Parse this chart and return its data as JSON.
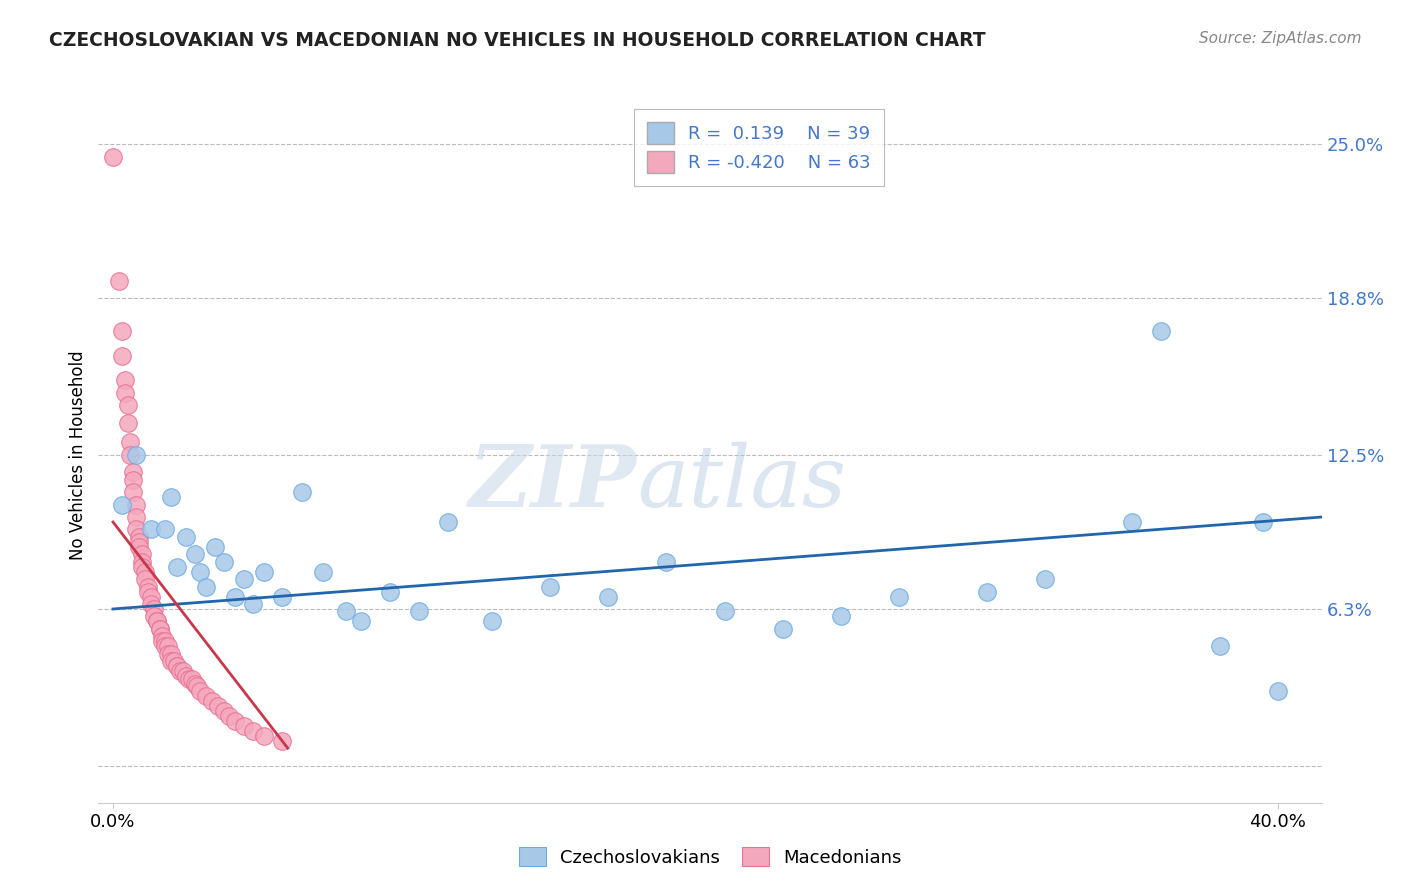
{
  "title": "CZECHOSLOVAKIAN VS MACEDONIAN NO VEHICLES IN HOUSEHOLD CORRELATION CHART",
  "source": "Source: ZipAtlas.com",
  "ylabel": "No Vehicles in Household",
  "yticks": [
    0.0,
    0.063,
    0.125,
    0.188,
    0.25
  ],
  "ytick_labels": [
    "",
    "6.3%",
    "12.5%",
    "18.8%",
    "25.0%"
  ],
  "xticks": [
    0.0,
    0.4
  ],
  "xtick_labels": [
    "0.0%",
    "40.0%"
  ],
  "xlim": [
    -0.005,
    0.415
  ],
  "ylim": [
    -0.015,
    0.265
  ],
  "legend_blue_r": "R =  0.139",
  "legend_blue_n": "N = 39",
  "legend_pink_r": "R = -0.420",
  "legend_pink_n": "N = 63",
  "watermark_zip": "ZIP",
  "watermark_atlas": "atlas",
  "blue_color": "#a8c8e8",
  "pink_color": "#f4a8be",
  "blue_edge_color": "#6aabe0",
  "pink_edge_color": "#e87090",
  "blue_line_color": "#2166ac",
  "pink_line_color": "#c8384a",
  "legend_text_color": "#4477cc",
  "title_color": "#222222",
  "source_color": "#888888",
  "grid_color": "#bbbbbb",
  "ytick_color": "#4477cc",
  "blue_scatter": [
    [
      0.003,
      0.105
    ],
    [
      0.008,
      0.125
    ],
    [
      0.013,
      0.095
    ],
    [
      0.018,
      0.095
    ],
    [
      0.02,
      0.108
    ],
    [
      0.022,
      0.08
    ],
    [
      0.025,
      0.092
    ],
    [
      0.028,
      0.085
    ],
    [
      0.03,
      0.078
    ],
    [
      0.032,
      0.072
    ],
    [
      0.035,
      0.088
    ],
    [
      0.038,
      0.082
    ],
    [
      0.042,
      0.068
    ],
    [
      0.045,
      0.075
    ],
    [
      0.048,
      0.065
    ],
    [
      0.052,
      0.078
    ],
    [
      0.058,
      0.068
    ],
    [
      0.065,
      0.11
    ],
    [
      0.072,
      0.078
    ],
    [
      0.08,
      0.062
    ],
    [
      0.085,
      0.058
    ],
    [
      0.095,
      0.07
    ],
    [
      0.105,
      0.062
    ],
    [
      0.115,
      0.098
    ],
    [
      0.13,
      0.058
    ],
    [
      0.15,
      0.072
    ],
    [
      0.17,
      0.068
    ],
    [
      0.19,
      0.082
    ],
    [
      0.21,
      0.062
    ],
    [
      0.23,
      0.055
    ],
    [
      0.25,
      0.06
    ],
    [
      0.27,
      0.068
    ],
    [
      0.3,
      0.07
    ],
    [
      0.32,
      0.075
    ],
    [
      0.35,
      0.098
    ],
    [
      0.36,
      0.175
    ],
    [
      0.38,
      0.048
    ],
    [
      0.395,
      0.098
    ],
    [
      0.4,
      0.03
    ]
  ],
  "pink_scatter": [
    [
      0.0,
      0.245
    ],
    [
      0.002,
      0.195
    ],
    [
      0.003,
      0.175
    ],
    [
      0.003,
      0.165
    ],
    [
      0.004,
      0.155
    ],
    [
      0.004,
      0.15
    ],
    [
      0.005,
      0.145
    ],
    [
      0.005,
      0.138
    ],
    [
      0.006,
      0.13
    ],
    [
      0.006,
      0.125
    ],
    [
      0.007,
      0.118
    ],
    [
      0.007,
      0.115
    ],
    [
      0.007,
      0.11
    ],
    [
      0.008,
      0.105
    ],
    [
      0.008,
      0.1
    ],
    [
      0.008,
      0.095
    ],
    [
      0.009,
      0.092
    ],
    [
      0.009,
      0.09
    ],
    [
      0.009,
      0.088
    ],
    [
      0.01,
      0.085
    ],
    [
      0.01,
      0.082
    ],
    [
      0.01,
      0.08
    ],
    [
      0.011,
      0.078
    ],
    [
      0.011,
      0.075
    ],
    [
      0.012,
      0.072
    ],
    [
      0.012,
      0.07
    ],
    [
      0.013,
      0.068
    ],
    [
      0.013,
      0.065
    ],
    [
      0.014,
      0.063
    ],
    [
      0.014,
      0.06
    ],
    [
      0.015,
      0.058
    ],
    [
      0.015,
      0.058
    ],
    [
      0.016,
      0.055
    ],
    [
      0.016,
      0.055
    ],
    [
      0.017,
      0.052
    ],
    [
      0.017,
      0.05
    ],
    [
      0.018,
      0.05
    ],
    [
      0.018,
      0.048
    ],
    [
      0.019,
      0.048
    ],
    [
      0.019,
      0.045
    ],
    [
      0.02,
      0.045
    ],
    [
      0.02,
      0.042
    ],
    [
      0.021,
      0.042
    ],
    [
      0.022,
      0.04
    ],
    [
      0.022,
      0.04
    ],
    [
      0.023,
      0.038
    ],
    [
      0.024,
      0.038
    ],
    [
      0.025,
      0.036
    ],
    [
      0.026,
      0.035
    ],
    [
      0.027,
      0.035
    ],
    [
      0.028,
      0.033
    ],
    [
      0.029,
      0.032
    ],
    [
      0.03,
      0.03
    ],
    [
      0.032,
      0.028
    ],
    [
      0.034,
      0.026
    ],
    [
      0.036,
      0.024
    ],
    [
      0.038,
      0.022
    ],
    [
      0.04,
      0.02
    ],
    [
      0.042,
      0.018
    ],
    [
      0.045,
      0.016
    ],
    [
      0.048,
      0.014
    ],
    [
      0.052,
      0.012
    ],
    [
      0.058,
      0.01
    ]
  ],
  "blue_trendline_x": [
    0.0,
    0.415
  ],
  "blue_trendline_y": [
    0.063,
    0.1
  ],
  "pink_trendline_x": [
    0.0,
    0.06
  ],
  "pink_trendline_y": [
    0.098,
    0.007
  ]
}
